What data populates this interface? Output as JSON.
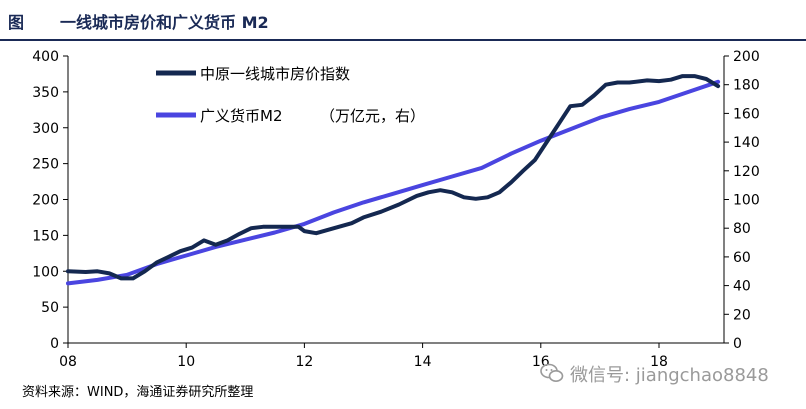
{
  "figure": {
    "label": "图",
    "title": "一线城市房价和广义货币 M2"
  },
  "source": "资料来源：WIND，海通证券研究所整理",
  "watermark": {
    "text": "微信号: jiangchao8848",
    "icon": "wechat-icon"
  },
  "colors": {
    "title": "#1a2a56",
    "series_price": "#142850",
    "series_m2": "#4a45e0"
  },
  "chart_data": {
    "type": "line",
    "x_ticks": [
      "08",
      "10",
      "12",
      "14",
      "16",
      "18"
    ],
    "x_tick_values": [
      2008,
      2010,
      2012,
      2014,
      2016,
      2018
    ],
    "xlim": [
      2008,
      2019.1
    ],
    "y_left": {
      "ticks": [
        0,
        50,
        100,
        150,
        200,
        250,
        300,
        350,
        400
      ],
      "lim": [
        0,
        400
      ]
    },
    "y_right": {
      "ticks": [
        0,
        20,
        40,
        60,
        80,
        100,
        120,
        140,
        160,
        180,
        200
      ],
      "lim": [
        0,
        200
      ]
    },
    "legend_position": "top-left",
    "series": [
      {
        "name": "中原一线城市房价指数",
        "axis": "left",
        "x": [
          2008.0,
          2008.3,
          2008.5,
          2008.7,
          2008.9,
          2009.1,
          2009.3,
          2009.5,
          2009.7,
          2009.9,
          2010.1,
          2010.3,
          2010.5,
          2010.7,
          2010.9,
          2011.1,
          2011.3,
          2011.5,
          2011.7,
          2011.9,
          2012.0,
          2012.2,
          2012.5,
          2012.8,
          2013.0,
          2013.3,
          2013.6,
          2013.9,
          2014.1,
          2014.3,
          2014.5,
          2014.7,
          2014.9,
          2015.1,
          2015.3,
          2015.5,
          2015.7,
          2015.9,
          2016.1,
          2016.3,
          2016.5,
          2016.7,
          2016.9,
          2017.1,
          2017.3,
          2017.5,
          2017.8,
          2018.0,
          2018.2,
          2018.4,
          2018.6,
          2018.8,
          2019.0
        ],
        "values": [
          100,
          99,
          100,
          97,
          90,
          90,
          100,
          112,
          120,
          128,
          133,
          143,
          137,
          143,
          152,
          160,
          162,
          162,
          162,
          162,
          156,
          153,
          160,
          167,
          175,
          183,
          193,
          205,
          210,
          213,
          210,
          203,
          201,
          203,
          210,
          224,
          240,
          255,
          280,
          305,
          330,
          332,
          345,
          360,
          363,
          363,
          366,
          365,
          367,
          372,
          372,
          368,
          358
        ]
      },
      {
        "name": "广义货币M2",
        "note": "（万亿元，右）",
        "axis": "right",
        "x": [
          2008.0,
          2008.5,
          2009.0,
          2009.5,
          2010.0,
          2010.5,
          2011.0,
          2011.5,
          2012.0,
          2012.5,
          2013.0,
          2013.5,
          2014.0,
          2014.5,
          2015.0,
          2015.5,
          2016.0,
          2016.5,
          2017.0,
          2017.5,
          2018.0,
          2018.5,
          2019.0
        ],
        "values": [
          41.5,
          44,
          47.5,
          55,
          61,
          67,
          72,
          77,
          83,
          91,
          98,
          104,
          110,
          116,
          122,
          132,
          141,
          149,
          157,
          163,
          168,
          175,
          182
        ]
      }
    ]
  }
}
